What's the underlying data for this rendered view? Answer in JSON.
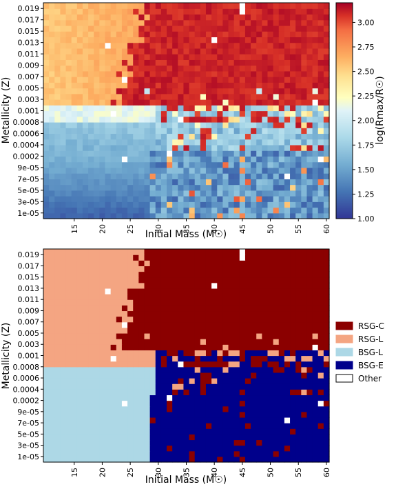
{
  "chart_data": [
    {
      "type": "heatmap",
      "xlabel": "Initial Mass (M☉)",
      "ylabel": "Metallicity (Z)",
      "xticks": [
        15,
        20,
        25,
        30,
        35,
        40,
        45,
        50,
        55,
        60
      ],
      "xlim": [
        10,
        61
      ],
      "yticks": [
        "1e-05",
        "3e-05",
        "5e-05",
        "7e-05",
        "9e-05",
        "0.0002",
        "0.0004",
        "0.0006",
        "0.0008",
        "0.001",
        "0.003",
        "0.005",
        "0.007",
        "0.009",
        "0.011",
        "0.013",
        "0.015",
        "0.017",
        "0.019"
      ],
      "colorbar": {
        "label": "log(Rmax/R☉)",
        "range": [
          1.0,
          3.2
        ],
        "ticks": [
          "1.00",
          "1.25",
          "1.50",
          "1.75",
          "2.00",
          "2.25",
          "2.50",
          "2.75",
          "3.00"
        ],
        "colormap": "RdYlBu_r"
      },
      "regions": [
        {
          "z_range": [
            "0.001",
            "0.020"
          ],
          "mass_range": [
            10,
            25
          ],
          "value": 2.6
        },
        {
          "z_range": [
            "0.001",
            "0.020"
          ],
          "mass_range": [
            25,
            61
          ],
          "value": 3.1
        },
        {
          "z_range": [
            "0.0008",
            "0.0008"
          ],
          "mass_range": [
            10,
            61
          ],
          "value": 2.15
        },
        {
          "z_range": [
            "0.0002",
            "0.0006"
          ],
          "mass_range": [
            10,
            30
          ],
          "value": 1.7
        },
        {
          "z_range": [
            "1e-05",
            "0.0001"
          ],
          "mass_range": [
            10,
            30
          ],
          "value": 1.3
        },
        {
          "z_range": [
            "1e-05",
            "0.0006"
          ],
          "mass_range": [
            30,
            61
          ],
          "value": 1.6
        }
      ]
    },
    {
      "type": "heatmap",
      "xlabel": "Initial Mass (M☉)",
      "ylabel": "Metallicity (Z)",
      "xticks": [
        15,
        20,
        25,
        30,
        35,
        40,
        45,
        50,
        55,
        60
      ],
      "xlim": [
        10,
        61
      ],
      "yticks": [
        "1e-05",
        "3e-05",
        "5e-05",
        "7e-05",
        "9e-05",
        "0.0002",
        "0.0004",
        "0.0006",
        "0.0008",
        "0.001",
        "0.003",
        "0.005",
        "0.007",
        "0.009",
        "0.011",
        "0.013",
        "0.015",
        "0.017",
        "0.019"
      ],
      "legend": {
        "placement": "right",
        "entries": [
          {
            "label": "RSG-C",
            "color": "#8b0000"
          },
          {
            "label": "RSG-L",
            "color": "#f4a582"
          },
          {
            "label": "BSG-L",
            "color": "#add8e6"
          },
          {
            "label": "BSG-E",
            "color": "#00008b"
          },
          {
            "label": "Other",
            "color": "#ffffff"
          }
        ]
      },
      "regions": [
        {
          "class": "RSG-C",
          "z_range": [
            "0.001",
            "0.020"
          ],
          "mass_range": [
            25,
            61
          ]
        },
        {
          "class": "RSG-L",
          "z_range": [
            "0.001",
            "0.020"
          ],
          "mass_range": [
            10,
            25
          ]
        },
        {
          "class": "BSG-L",
          "z_range": [
            "1e-05",
            "0.0008"
          ],
          "mass_range": [
            10,
            30
          ]
        },
        {
          "class": "BSG-E",
          "z_range": [
            "1e-05",
            "0.0008"
          ],
          "mass_range": [
            30,
            61
          ]
        }
      ]
    }
  ]
}
